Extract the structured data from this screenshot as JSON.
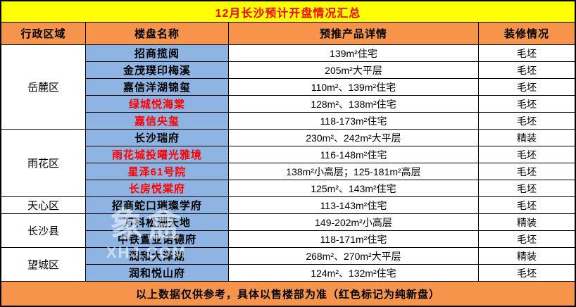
{
  "title": "12月长沙预计开盘情况汇总",
  "table": {
    "columns": [
      "行政区域",
      "楼盘名称",
      "预推产品详情",
      "装修情况"
    ],
    "regions": [
      {
        "name": "岳麓区",
        "projects": [
          {
            "name": "招商揽阅",
            "new_listing": false,
            "products": "139m²住宅",
            "finish": "毛坯"
          },
          {
            "name": "金茂璞印梅溪",
            "new_listing": false,
            "products": "205m²大平层",
            "finish": "毛坯"
          },
          {
            "name": "嘉信洋湖锦玺",
            "new_listing": false,
            "products": "110m²、139m²住宅",
            "finish": "毛坯"
          },
          {
            "name": "绿城悦海棠",
            "new_listing": true,
            "products": "128m²、138m²住宅",
            "finish": "毛坯"
          },
          {
            "name": "嘉信央玺",
            "new_listing": true,
            "products": "118-173m²住宅",
            "finish": "毛坯"
          }
        ]
      },
      {
        "name": "雨花区",
        "projects": [
          {
            "name": "长沙瑞府",
            "new_listing": false,
            "products": "230m²、242m²大平层",
            "finish": "精装"
          },
          {
            "name": "雨花城投曙光雅境",
            "new_listing": true,
            "products": "116-148m²住宅",
            "finish": "毛坯"
          },
          {
            "name": "星泽61号院",
            "new_listing": true,
            "products": "138m²小高层；125-181m²高层",
            "finish": "毛坯"
          },
          {
            "name": "长房悦棠府",
            "new_listing": true,
            "products": "125m²、143m²住宅",
            "finish": "毛坯"
          }
        ]
      },
      {
        "name": "天心区",
        "projects": [
          {
            "name": "招商蛇口璀璨学府",
            "new_listing": false,
            "products": "113-143m²住宅",
            "finish": "毛坯"
          }
        ]
      },
      {
        "name": "长沙县",
        "projects": [
          {
            "name": "万科松湖天地",
            "new_listing": false,
            "products": "149-202m²小高层",
            "finish": "精装"
          },
          {
            "name": "中铁置业诺德府",
            "new_listing": false,
            "products": "118-171m²住宅",
            "finish": "毛坯"
          }
        ]
      },
      {
        "name": "望城区",
        "projects": [
          {
            "name": "润和大泽湖",
            "new_listing": false,
            "products": "268m²、270m²大平层",
            "finish": "精装"
          },
          {
            "name": "润和悦山府",
            "new_listing": false,
            "products": "124m²、132m²住宅",
            "finish": "毛坯"
          }
        ]
      }
    ]
  },
  "footer": "以上数据仅供参考，具体以售楼部为准（红色标记为纯新盘）",
  "watermark": {
    "logo_text": "象盒",
    "domain_text": "XHJ.COM"
  },
  "colors": {
    "title_bg": "#FFFF00",
    "title_text": "#FF0000",
    "header_bg": "#F5944A",
    "project_bg": "#8DB4E2",
    "new_listing_text": "#FF0000",
    "grid_line": "#000000"
  }
}
